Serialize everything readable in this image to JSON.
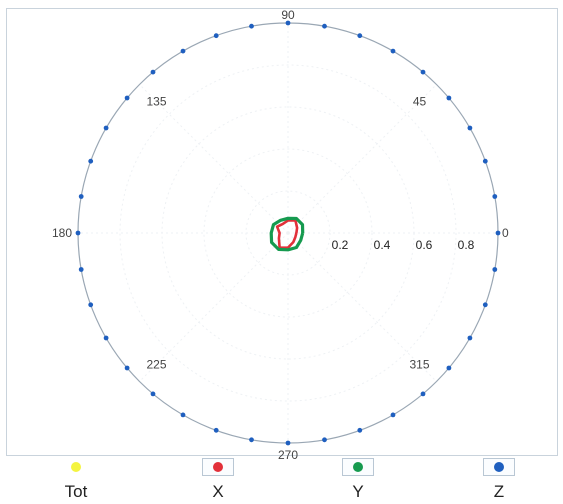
{
  "chart_data": {
    "type": "polar",
    "angle_ticks": [
      {
        "deg": 0,
        "label": "0"
      },
      {
        "deg": 45,
        "label": "45"
      },
      {
        "deg": 90,
        "label": "90"
      },
      {
        "deg": 135,
        "label": "135"
      },
      {
        "deg": 180,
        "label": "180"
      },
      {
        "deg": 225,
        "label": "225"
      },
      {
        "deg": 270,
        "label": "270"
      },
      {
        "deg": 315,
        "label": "315"
      }
    ],
    "radial_ticks": [
      0.2,
      0.4,
      0.6,
      0.8
    ],
    "rlim": [
      0,
      1
    ],
    "grid": true,
    "legend_position": "bottom",
    "series": [
      {
        "name": "Tot",
        "color": "#f4f440",
        "points": []
      },
      {
        "name": "X",
        "color": "#e2303a",
        "points": [
          [
            0,
            0.04
          ],
          [
            30,
            0.05
          ],
          [
            60,
            0.07
          ],
          [
            90,
            0.06
          ],
          [
            120,
            0.05
          ],
          [
            150,
            0.06
          ],
          [
            180,
            0.04
          ],
          [
            210,
            0.05
          ],
          [
            240,
            0.08
          ],
          [
            270,
            0.07
          ],
          [
            300,
            0.05
          ],
          [
            330,
            0.04
          ]
        ]
      },
      {
        "name": "Y",
        "color": "#169a4f",
        "points": [
          [
            0,
            0.07
          ],
          [
            30,
            0.08
          ],
          [
            60,
            0.08
          ],
          [
            90,
            0.07
          ],
          [
            120,
            0.07
          ],
          [
            150,
            0.08
          ],
          [
            180,
            0.08
          ],
          [
            210,
            0.09
          ],
          [
            240,
            0.09
          ],
          [
            270,
            0.08
          ],
          [
            300,
            0.08
          ],
          [
            330,
            0.07
          ]
        ]
      },
      {
        "name": "Z",
        "color": "#1f5fbf",
        "points": [
          [
            0,
            1
          ],
          [
            10,
            1
          ],
          [
            20,
            1
          ],
          [
            30,
            1
          ],
          [
            40,
            1
          ],
          [
            50,
            1
          ],
          [
            60,
            1
          ],
          [
            70,
            1
          ],
          [
            80,
            1
          ],
          [
            90,
            1
          ],
          [
            100,
            1
          ],
          [
            110,
            1
          ],
          [
            120,
            1
          ],
          [
            130,
            1
          ],
          [
            140,
            1
          ],
          [
            150,
            1
          ],
          [
            160,
            1
          ],
          [
            170,
            1
          ],
          [
            180,
            1
          ],
          [
            190,
            1
          ],
          [
            200,
            1
          ],
          [
            210,
            1
          ],
          [
            220,
            1
          ],
          [
            230,
            1
          ],
          [
            240,
            1
          ],
          [
            250,
            1
          ],
          [
            260,
            1
          ],
          [
            270,
            1
          ],
          [
            280,
            1
          ],
          [
            290,
            1
          ],
          [
            300,
            1
          ],
          [
            310,
            1
          ],
          [
            320,
            1
          ],
          [
            330,
            1
          ],
          [
            340,
            1
          ],
          [
            350,
            1
          ]
        ]
      }
    ]
  },
  "legend": {
    "items": [
      {
        "label": "Tot",
        "color": "#f4f440",
        "boxed": false
      },
      {
        "label": "X",
        "color": "#e2303a",
        "boxed": true
      },
      {
        "label": "Y",
        "color": "#169a4f",
        "boxed": true
      },
      {
        "label": "Z",
        "color": "#1f5fbf",
        "boxed": true
      }
    ]
  }
}
